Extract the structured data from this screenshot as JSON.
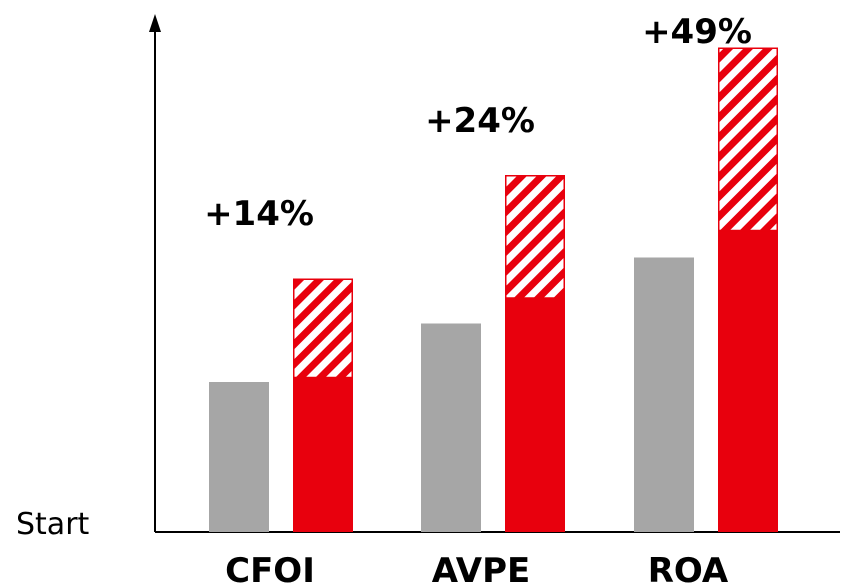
{
  "chart_data": {
    "type": "bar",
    "baseline_label": "Start",
    "categories": [
      "CFOI",
      "AVPE",
      "ROA"
    ],
    "series": [
      {
        "values": [
          100,
          139,
          183
        ],
        "color": "#a6a6a6"
      },
      {
        "values": [
          103,
          156,
          201
        ],
        "color": "#e8000d"
      }
    ],
    "increments": [
      66,
      82,
      122
    ],
    "increment_style": "red-white-diagonal-hatch",
    "annotations": [
      "+14%",
      "+24%",
      "+49%"
    ],
    "ylim": [
      0,
      320
    ],
    "axes": {
      "x": "line",
      "y": "arrow"
    },
    "grid": false,
    "legend": "none"
  }
}
